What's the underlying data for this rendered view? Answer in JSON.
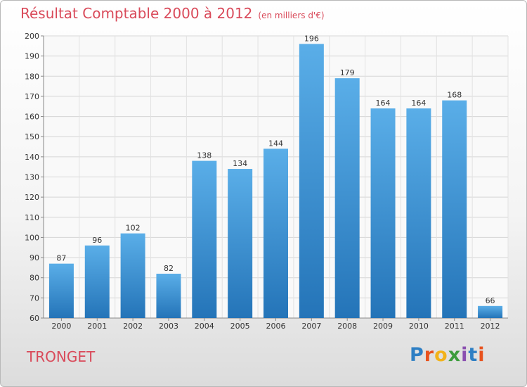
{
  "title": "Résultat Comptable 2000 à 2012",
  "subtitle": "(en milliers d'€)",
  "commune": "TRONGET",
  "logo": {
    "letters": [
      "P",
      "r",
      "o",
      "x",
      "i",
      "t",
      "i"
    ],
    "colors": [
      "#2e7fc4",
      "#e8521e",
      "#f2b21a",
      "#3b9c3b",
      "#8a4fb0",
      "#2e7fc4",
      "#e8521e"
    ]
  },
  "colors": {
    "bar": "#3d9be0",
    "bar_dark": "#2277bb",
    "title": "#d94a5a"
  },
  "chart_data": {
    "type": "bar",
    "categories": [
      "2000",
      "2001",
      "2002",
      "2003",
      "2004",
      "2005",
      "2006",
      "2007",
      "2008",
      "2009",
      "2010",
      "2011",
      "2012"
    ],
    "values": [
      87,
      96,
      102,
      82,
      138,
      134,
      144,
      196,
      179,
      164,
      164,
      168,
      66
    ],
    "ylim": [
      60,
      200
    ],
    "yticks": [
      60,
      70,
      80,
      90,
      100,
      110,
      120,
      130,
      140,
      150,
      160,
      170,
      180,
      190,
      200
    ],
    "grid": true
  }
}
